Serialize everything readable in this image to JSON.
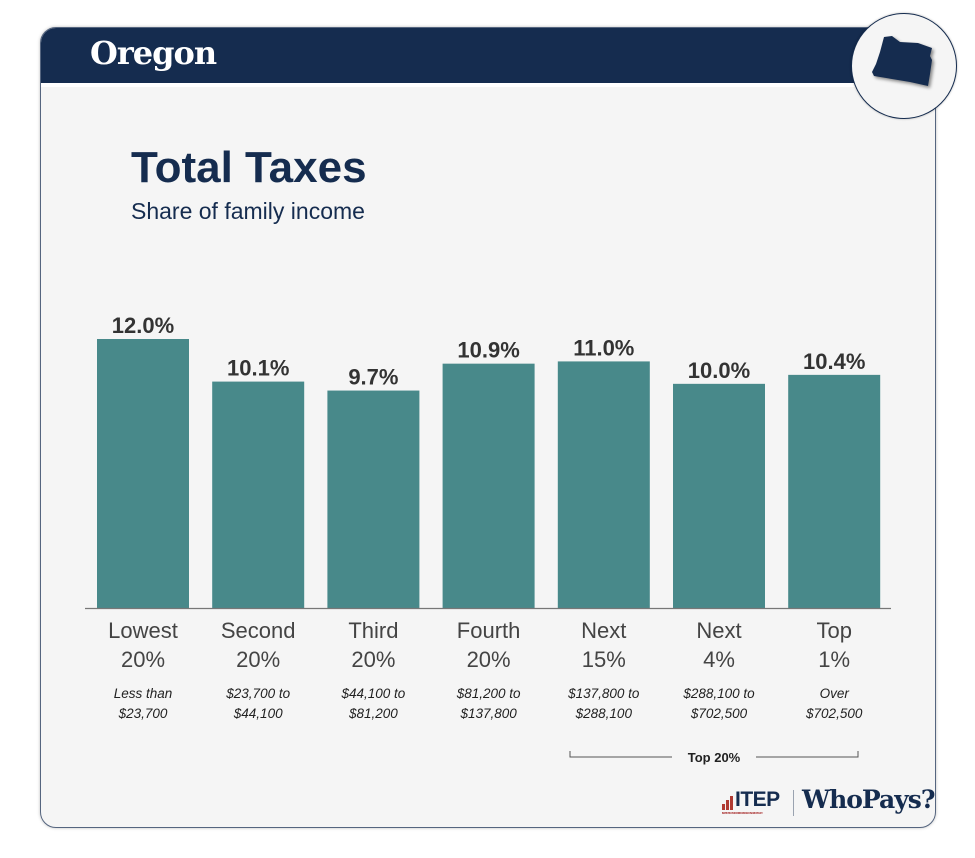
{
  "header": {
    "state": "Oregon",
    "state_icon": "oregon-state-shape-icon"
  },
  "colors": {
    "navy": "#152c4f",
    "bar": "#48898a",
    "value_text": "#333333",
    "label_text": "#444444"
  },
  "footer": {
    "itep": "ITEP",
    "itep_sub": "INSTITUTE ON TAXATION AND ECONOMIC POLICY",
    "whopays": "WhoPays?"
  },
  "chart_data": {
    "type": "bar",
    "title": "Total Taxes",
    "subtitle": "Share of family income",
    "categories": [
      "Lowest 20%",
      "Second 20%",
      "Third 20%",
      "Fourth 20%",
      "Next 15%",
      "Next 4%",
      "Top 1%"
    ],
    "category_lines": [
      [
        "Lowest",
        "20%"
      ],
      [
        "Second",
        "20%"
      ],
      [
        "Third",
        "20%"
      ],
      [
        "Fourth",
        "20%"
      ],
      [
        "Next",
        "15%"
      ],
      [
        "Next",
        "4%"
      ],
      [
        "Top",
        "1%"
      ]
    ],
    "income_ranges": [
      [
        "Less than",
        "$23,700"
      ],
      [
        "$23,700 to",
        "$44,100"
      ],
      [
        "$44,100 to",
        "$81,200"
      ],
      [
        "$81,200 to",
        "$137,800"
      ],
      [
        "$137,800 to",
        "$288,100"
      ],
      [
        "$288,100 to",
        "$702,500"
      ],
      [
        "Over",
        "$702,500"
      ]
    ],
    "values": [
      12.0,
      10.1,
      9.7,
      10.9,
      11.0,
      10.0,
      10.4
    ],
    "value_labels": [
      "12.0%",
      "10.1%",
      "9.7%",
      "10.9%",
      "11.0%",
      "10.0%",
      "10.4%"
    ],
    "xlabel": "",
    "ylabel": "",
    "ylim": [
      0,
      12
    ],
    "grid": false,
    "group_bracket": {
      "label": "Top 20%",
      "from_category": 4,
      "to_category": 6
    }
  }
}
